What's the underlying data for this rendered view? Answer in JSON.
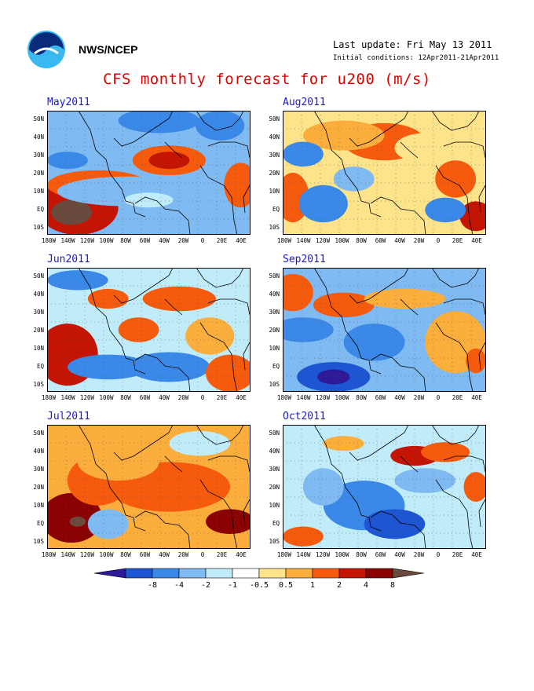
{
  "header": {
    "agency": "NWS/NCEP",
    "last_update": "Last update: Fri May 13 2011",
    "initial_conditions": "Initial conditions: 12Apr2011-21Apr2011",
    "title": "CFS monthly forecast for u200 (m/s)"
  },
  "map": {
    "lat_labels": [
      "50N",
      "40N",
      "30N",
      "20N",
      "10N",
      "EQ",
      "10S"
    ],
    "lon_labels": [
      "180W",
      "140W",
      "120W",
      "100W",
      "80W",
      "60W",
      "40W",
      "20W",
      "0",
      "20E",
      "40E"
    ]
  },
  "panels": [
    {
      "month": "May2011"
    },
    {
      "month": "Aug2011"
    },
    {
      "month": "Jun2011"
    },
    {
      "month": "Sep2011"
    },
    {
      "month": "Jul2011"
    },
    {
      "month": "Oct2011"
    }
  ],
  "colorbar": {
    "labels": [
      "-8",
      "-4",
      "-2",
      "-1",
      "-0.5",
      "0.5",
      "1",
      "2",
      "4",
      "8"
    ],
    "colors": [
      "#2e1a99",
      "#1d55d2",
      "#3a88e8",
      "#7fbaf2",
      "#c0ecf9",
      "#ffffff",
      "#fde38a",
      "#fcae3c",
      "#f55a0d",
      "#c41404",
      "#8a0202",
      "#6b4a3e"
    ]
  }
}
